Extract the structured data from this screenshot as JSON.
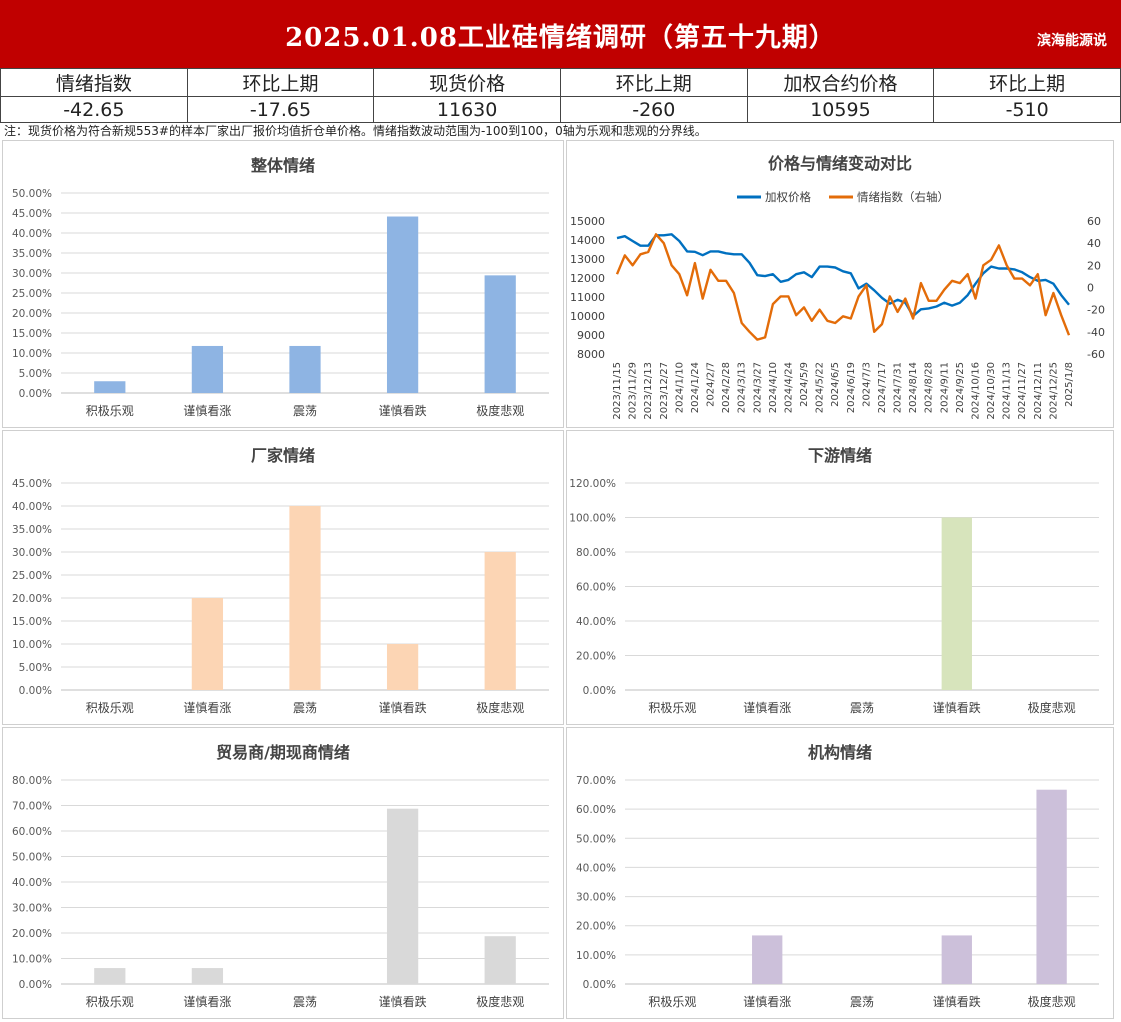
{
  "header": {
    "title": "2025.01.08工业硅情绪调研（第五十九期）",
    "brand": "滨海能源说",
    "bg_color": "#c00000"
  },
  "kpi": {
    "labels": [
      "情绪指数",
      "环比上期",
      "现货价格",
      "环比上期",
      "加权合约价格",
      "环比上期"
    ],
    "values": [
      "-42.65",
      "-17.65",
      "11630",
      "-260",
      "10595",
      "-510"
    ]
  },
  "note": "注：现货价格为符合新规553#的样本厂家出厂报价均值折仓单价格。情绪指数波动范围为-100到100，0轴为乐观和悲观的分界线。",
  "chart_data": [
    {
      "type": "bar",
      "title": "整体情绪",
      "categories": [
        "积极乐观",
        "谨慎看涨",
        "震荡",
        "谨慎看跌",
        "极度悲观"
      ],
      "values": [
        2.94,
        11.76,
        11.76,
        44.12,
        29.41
      ],
      "ylim": [
        0,
        50
      ],
      "yticks": [
        "0.00%",
        "5.00%",
        "10.00%",
        "15.00%",
        "20.00%",
        "25.00%",
        "30.00%",
        "35.00%",
        "40.00%",
        "45.00%",
        "50.00%"
      ],
      "color": "#8eb4e3",
      "grid": true
    },
    {
      "type": "line",
      "title": "价格与情绪变动对比",
      "x": [
        "2023/11/15",
        "2023/11/22",
        "2023/11/29",
        "2023/12/6",
        "2023/12/13",
        "2023/12/20",
        "2023/12/27",
        "2024/1/3",
        "2024/1/10",
        "2024/1/17",
        "2024/1/24",
        "2024/1/31",
        "2024/2/7",
        "2024/2/21",
        "2024/2/28",
        "2024/3/6",
        "2024/3/13",
        "2024/3/20",
        "2024/3/27",
        "2024/4/3",
        "2024/4/10",
        "2024/4/17",
        "2024/4/24",
        "2024/5/1",
        "2024/5/9",
        "2024/5/15",
        "2024/5/22",
        "2024/5/29",
        "2024/6/5",
        "2024/6/12",
        "2024/6/19",
        "2024/6/26",
        "2024/7/3",
        "2024/7/10",
        "2024/7/17",
        "2024/7/24",
        "2024/7/31",
        "2024/8/7",
        "2024/8/14",
        "2024/8/21",
        "2024/8/28",
        "2024/9/4",
        "2024/9/11",
        "2024/9/18",
        "2024/9/25",
        "2024/10/9",
        "2024/10/16",
        "2024/10/23",
        "2024/10/30",
        "2024/11/6",
        "2024/11/13",
        "2024/11/20",
        "2024/11/27",
        "2024/12/4",
        "2024/12/11",
        "2024/12/18",
        "2024/12/25",
        "2025/1/1",
        "2025/1/8"
      ],
      "xticks": [
        "2023/11/15",
        "2023/11/29",
        "2023/12/13",
        "2023/12/27",
        "2024/1/10",
        "2024/1/24",
        "2024/2/7",
        "2024/2/28",
        "2024/3/13",
        "2024/3/27",
        "2024/4/10",
        "2024/4/24",
        "2024/5/9",
        "2024/5/22",
        "2024/6/5",
        "2024/6/19",
        "2024/7/3",
        "2024/7/17",
        "2024/7/31",
        "2024/8/14",
        "2024/8/28",
        "2024/9/11",
        "2024/9/25",
        "2024/10/16",
        "2024/10/30",
        "2024/11/13",
        "2024/11/27",
        "2024/12/11",
        "2024/12/25",
        "2025/1/8"
      ],
      "series": [
        {
          "name": "加权价格",
          "axis": "left",
          "color": "#0070c0",
          "values": [
            14100,
            14200,
            13950,
            13700,
            13700,
            14250,
            14250,
            14300,
            13950,
            13400,
            13380,
            13200,
            13400,
            13400,
            13300,
            13250,
            13250,
            12800,
            12150,
            12100,
            12200,
            11800,
            11900,
            12200,
            12300,
            12050,
            12600,
            12600,
            12550,
            12350,
            12250,
            11450,
            11700,
            11350,
            10950,
            10650,
            10850,
            10700,
            10000,
            10350,
            10400,
            10500,
            10700,
            10550,
            10700,
            11100,
            11700,
            12250,
            12600,
            12500,
            12500,
            12450,
            12300,
            12050,
            11850,
            11900,
            11700,
            11100,
            10595
          ]
        },
        {
          "name": "情绪指数（右轴）",
          "axis": "right",
          "color": "#e36c09",
          "values": [
            12,
            29,
            20,
            30,
            32,
            48,
            40,
            20,
            12,
            -7,
            22,
            -10,
            16,
            6,
            6,
            -5,
            -32,
            -40,
            -47,
            -45,
            -15,
            -8,
            -8,
            -25,
            -18,
            -30,
            -20,
            -30,
            -32,
            -26,
            -28,
            -8,
            2,
            -40,
            -33,
            -8,
            -22,
            -10,
            -28,
            4,
            -12,
            -12,
            -2,
            6,
            4,
            12,
            -10,
            20,
            25,
            38,
            20,
            8,
            8,
            2,
            12,
            -25,
            -5,
            -25,
            -43
          ]
        }
      ],
      "y_left": {
        "ylim": [
          8000,
          15000
        ],
        "ticks": [
          8000,
          9000,
          10000,
          11000,
          12000,
          13000,
          14000,
          15000
        ]
      },
      "y_right": {
        "ylim": [
          -60,
          60
        ],
        "ticks": [
          -60,
          -40,
          -20,
          0,
          20,
          40,
          60
        ]
      },
      "legend": "top-center",
      "grid": false
    },
    {
      "type": "bar",
      "title": "厂家情绪",
      "categories": [
        "积极乐观",
        "谨慎看涨",
        "震荡",
        "谨慎看跌",
        "极度悲观"
      ],
      "values": [
        0,
        20,
        40,
        10,
        30
      ],
      "ylim": [
        0,
        45
      ],
      "yticks": [
        "0.00%",
        "5.00%",
        "10.00%",
        "15.00%",
        "20.00%",
        "25.00%",
        "30.00%",
        "35.00%",
        "40.00%",
        "45.00%"
      ],
      "color": "#fcd5b4",
      "grid": true
    },
    {
      "type": "bar",
      "title": "下游情绪",
      "categories": [
        "积极乐观",
        "谨慎看涨",
        "震荡",
        "谨慎看跌",
        "极度悲观"
      ],
      "values": [
        0,
        0,
        0,
        100,
        0
      ],
      "ylim": [
        0,
        120
      ],
      "yticks": [
        "0.00%",
        "20.00%",
        "40.00%",
        "60.00%",
        "80.00%",
        "100.00%",
        "120.00%"
      ],
      "color": "#d7e4bc",
      "grid": true
    },
    {
      "type": "bar",
      "title": "贸易商/期现商情绪",
      "categories": [
        "积极乐观",
        "谨慎看涨",
        "震荡",
        "谨慎看跌",
        "极度悲观"
      ],
      "values": [
        6.25,
        6.25,
        0,
        68.75,
        18.75
      ],
      "ylim": [
        0,
        80
      ],
      "yticks": [
        "0.00%",
        "10.00%",
        "20.00%",
        "30.00%",
        "40.00%",
        "50.00%",
        "60.00%",
        "70.00%",
        "80.00%"
      ],
      "color": "#d9d9d9",
      "grid": true
    },
    {
      "type": "bar",
      "title": "机构情绪",
      "categories": [
        "积极乐观",
        "谨慎看涨",
        "震荡",
        "谨慎看跌",
        "极度悲观"
      ],
      "values": [
        0,
        16.67,
        0,
        16.67,
        66.67
      ],
      "ylim": [
        0,
        70
      ],
      "yticks": [
        "0.00%",
        "10.00%",
        "20.00%",
        "30.00%",
        "40.00%",
        "50.00%",
        "60.00%",
        "70.00%"
      ],
      "color": "#ccc0da",
      "grid": true
    }
  ]
}
